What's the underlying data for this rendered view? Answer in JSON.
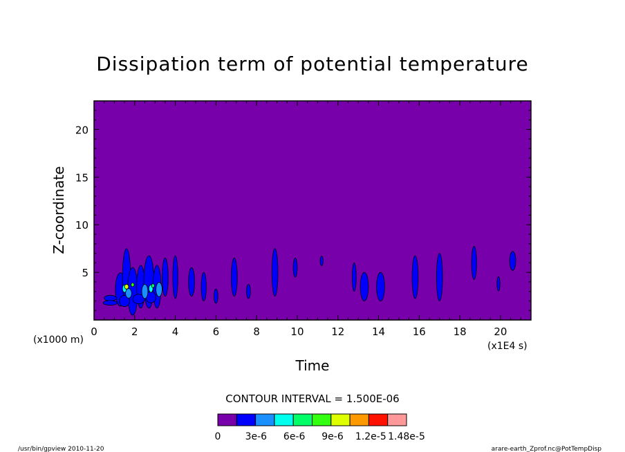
{
  "chart_data": {
    "type": "heatmap",
    "title": "Dissipation term of potential temperature",
    "xlabel": "Time",
    "x_unit": "(x1E4 s)",
    "ylabel": "Z-coordinate",
    "y_unit": "(x1000 m)",
    "xlim": [
      0,
      21.5
    ],
    "ylim": [
      0,
      23
    ],
    "xticks": [
      0,
      2,
      4,
      6,
      8,
      10,
      12,
      14,
      16,
      18,
      20
    ],
    "yticks": [
      5,
      10,
      15,
      20
    ],
    "xtick_labels": [
      "0",
      "2",
      "4",
      "6",
      "8",
      "10",
      "12",
      "14",
      "16",
      "18",
      "20"
    ],
    "ytick_labels": [
      "5",
      "10",
      "15",
      "20"
    ],
    "background_color": "#7700aa",
    "contour_interval_text": "CONTOUR INTERVAL = 1.500E-06",
    "colorbar": {
      "colors": [
        "#7700aa",
        "#0000ff",
        "#1a90ff",
        "#00ffee",
        "#00ff66",
        "#33ff11",
        "#ddff00",
        "#ff9900",
        "#ff1100",
        "#ff9999"
      ],
      "labels": [
        "0",
        "3e-6",
        "6e-6",
        "9e-6",
        "1.2e-5",
        "1.48e-5"
      ],
      "label_values": [
        0,
        3e-06,
        6e-06,
        9e-06,
        1.2e-05,
        1.48e-05
      ]
    },
    "cells": [
      {
        "x": 1.3,
        "y": 3.2,
        "w": 0.5,
        "h": 3.5,
        "level": 1
      },
      {
        "x": 1.6,
        "y": 4.5,
        "w": 0.4,
        "h": 6.0,
        "level": 1
      },
      {
        "x": 1.9,
        "y": 3.0,
        "w": 0.5,
        "h": 5.0,
        "level": 1
      },
      {
        "x": 2.3,
        "y": 3.5,
        "w": 0.4,
        "h": 4.5,
        "level": 1
      },
      {
        "x": 2.7,
        "y": 4.0,
        "w": 0.5,
        "h": 5.5,
        "level": 1
      },
      {
        "x": 3.1,
        "y": 3.5,
        "w": 0.4,
        "h": 4.5,
        "level": 1
      },
      {
        "x": 3.5,
        "y": 4.5,
        "w": 0.3,
        "h": 4.0,
        "level": 1
      },
      {
        "x": 1.5,
        "y": 2.0,
        "w": 0.5,
        "h": 1.2,
        "level": 1
      },
      {
        "x": 0.8,
        "y": 2.3,
        "w": 0.6,
        "h": 0.6,
        "level": 1
      },
      {
        "x": 0.8,
        "y": 1.8,
        "w": 0.7,
        "h": 0.5,
        "level": 1
      },
      {
        "x": 2.2,
        "y": 2.2,
        "w": 0.6,
        "h": 1.0,
        "level": 1
      },
      {
        "x": 2.8,
        "y": 2.4,
        "w": 0.5,
        "h": 1.2,
        "level": 1
      },
      {
        "x": 1.7,
        "y": 2.8,
        "w": 0.3,
        "h": 1.0,
        "level": 2
      },
      {
        "x": 2.5,
        "y": 3.0,
        "w": 0.3,
        "h": 1.5,
        "level": 2
      },
      {
        "x": 3.2,
        "y": 3.2,
        "w": 0.3,
        "h": 1.5,
        "level": 2
      },
      {
        "x": 1.5,
        "y": 3.3,
        "w": 0.2,
        "h": 0.8,
        "level": 3
      },
      {
        "x": 2.8,
        "y": 3.3,
        "w": 0.2,
        "h": 0.8,
        "level": 3
      },
      {
        "x": 1.6,
        "y": 3.5,
        "w": 0.2,
        "h": 0.5,
        "level": 6
      },
      {
        "x": 1.9,
        "y": 3.7,
        "w": 0.15,
        "h": 0.4,
        "level": 5
      },
      {
        "x": 2.9,
        "y": 3.6,
        "w": 0.15,
        "h": 0.4,
        "level": 4
      },
      {
        "x": 4.0,
        "y": 4.5,
        "w": 0.25,
        "h": 4.5,
        "level": 1
      },
      {
        "x": 4.8,
        "y": 4.0,
        "w": 0.3,
        "h": 3.0,
        "level": 1
      },
      {
        "x": 5.4,
        "y": 3.5,
        "w": 0.25,
        "h": 3.0,
        "level": 1
      },
      {
        "x": 6.0,
        "y": 2.5,
        "w": 0.2,
        "h": 1.5,
        "level": 1
      },
      {
        "x": 6.9,
        "y": 4.5,
        "w": 0.3,
        "h": 4.0,
        "level": 1
      },
      {
        "x": 7.6,
        "y": 3.0,
        "w": 0.2,
        "h": 1.5,
        "level": 1
      },
      {
        "x": 8.9,
        "y": 5.0,
        "w": 0.3,
        "h": 5.0,
        "level": 1
      },
      {
        "x": 9.9,
        "y": 5.5,
        "w": 0.2,
        "h": 2.0,
        "level": 1
      },
      {
        "x": 11.2,
        "y": 6.2,
        "w": 0.15,
        "h": 1.0,
        "level": 1
      },
      {
        "x": 12.8,
        "y": 4.5,
        "w": 0.2,
        "h": 3.0,
        "level": 1
      },
      {
        "x": 13.3,
        "y": 3.5,
        "w": 0.4,
        "h": 3.0,
        "level": 1
      },
      {
        "x": 14.1,
        "y": 3.5,
        "w": 0.4,
        "h": 3.0,
        "level": 1
      },
      {
        "x": 15.8,
        "y": 4.5,
        "w": 0.3,
        "h": 4.5,
        "level": 1
      },
      {
        "x": 17.0,
        "y": 4.5,
        "w": 0.3,
        "h": 5.0,
        "level": 1
      },
      {
        "x": 18.7,
        "y": 6.0,
        "w": 0.25,
        "h": 3.5,
        "level": 1
      },
      {
        "x": 19.9,
        "y": 3.8,
        "w": 0.15,
        "h": 1.5,
        "level": 1
      },
      {
        "x": 20.6,
        "y": 6.2,
        "w": 0.3,
        "h": 2.0,
        "level": 1
      }
    ]
  },
  "footer": {
    "left": "/usr/bin/gpview  2010-11-20",
    "right": "arare-earth_Zprof.nc@PotTempDisp"
  }
}
